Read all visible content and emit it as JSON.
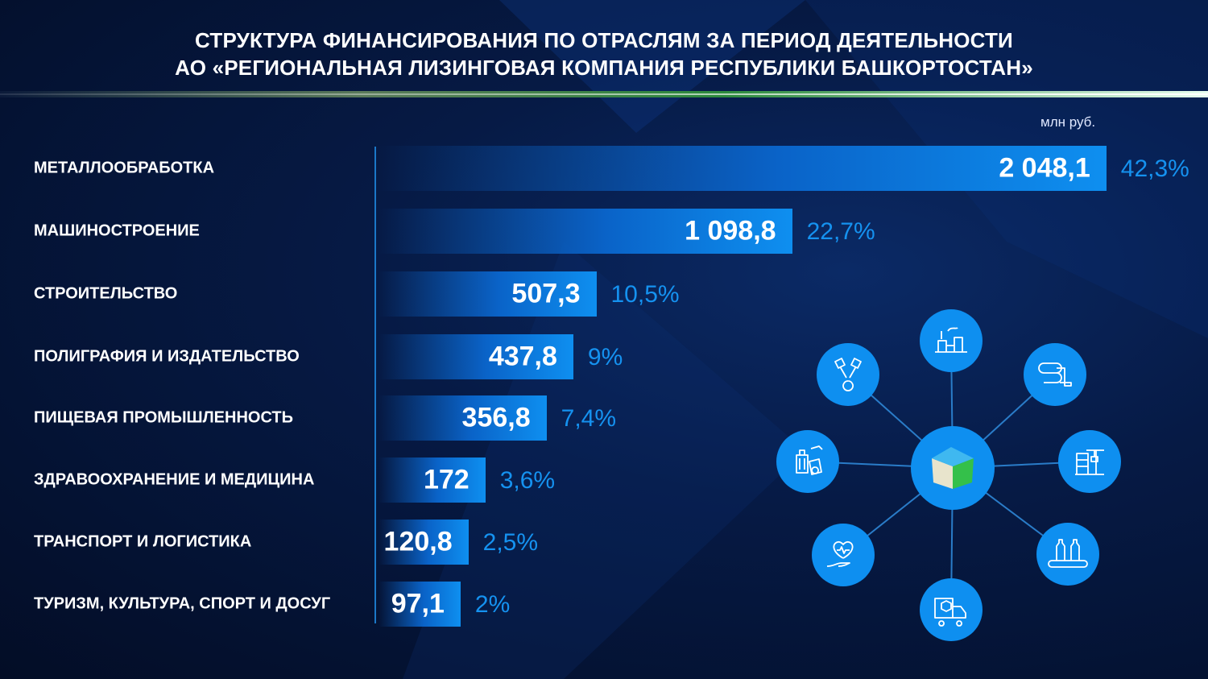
{
  "title_line1": "СТРУКТУРА ФИНАНСИРОВАНИЯ ПО ОТРАСЛЯМ ЗА ПЕРИОД ДЕЯТЕЛЬНОСТИ",
  "title_line2": "АО «РЕГИОНАЛЬНАЯ ЛИЗИНГОВАЯ КОМПАНИЯ РЕСПУБЛИКИ БАШКОРТОСТАН»",
  "colors": {
    "bar": "#0e8ff0",
    "percent": "#1592f0",
    "icon_circle": "#0e8ff0",
    "background": "#061a45"
  },
  "chart_data": {
    "type": "bar",
    "orientation": "horizontal",
    "unit": "млн руб.",
    "categories": [
      "МЕТАЛЛООБРАБОТКА",
      "МАШИНОСТРОЕНИЕ",
      "СТРОИТЕЛЬСТВО",
      "ПОЛИГРАФИЯ И ИЗДАТЕЛЬСТВО",
      "ПИЩЕВАЯ ПРОМЫШЛЕННОСТЬ",
      "ЗДРАВООХРАНЕНИЕ И МЕДИЦИНА",
      "ТРАНСПОРТ И ЛОГИСТИКА",
      "ТУРИЗМ, КУЛЬТУРА, СПОРТ И ДОСУГ"
    ],
    "values": [
      2048.1,
      1098.8,
      507.3,
      437.8,
      356.8,
      172,
      120.8,
      97.1
    ],
    "value_labels": [
      "2 048,1",
      "1 098,8",
      "507,3",
      "437,8",
      "356,8",
      "172",
      "120,8",
      "97,1"
    ],
    "percent_labels": [
      "42,3%",
      "22,7%",
      "10,5%",
      "9%",
      "7,4%",
      "3,6%",
      "2,5%",
      "2%"
    ],
    "grid": false
  },
  "icons": [
    "factory-icon",
    "printing-press-icon",
    "construction-crane-icon",
    "bottling-conveyor-icon",
    "delivery-truck-icon",
    "heart-hand-icon",
    "travel-luggage-icon",
    "engine-pistons-icon"
  ],
  "center_logo": "cube-logo"
}
